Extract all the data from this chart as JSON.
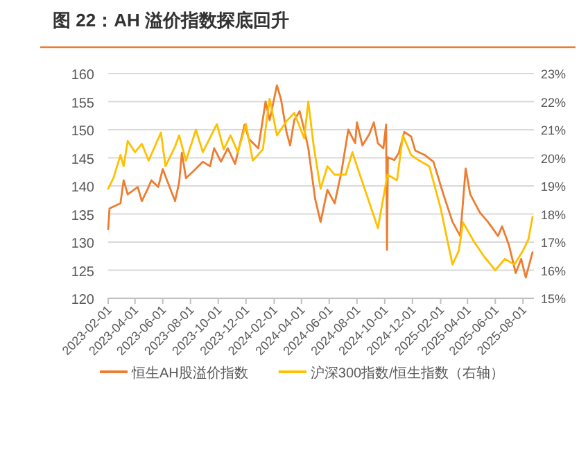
{
  "chart_data": {
    "type": "line",
    "title": "图 22：AH 溢价指数探底回升",
    "xlim": [
      "2023-02-01",
      "2025-08-25"
    ],
    "xticks": [
      "2023-02-01",
      "2023-04-01",
      "2023-06-01",
      "2023-08-01",
      "2023-10-01",
      "2023-12-01",
      "2024-02-01",
      "2024-04-01",
      "2024-06-01",
      "2024-08-01",
      "2024-10-01",
      "2024-12-01",
      "2025-02-01",
      "2025-04-01",
      "2025-06-01",
      "2025-08-01"
    ],
    "ylim": [
      120,
      160
    ],
    "yticks": [
      120,
      125,
      130,
      135,
      140,
      145,
      150,
      155,
      160
    ],
    "y2lim": [
      15,
      23
    ],
    "y2ticks": [
      {
        "value": 15,
        "label": "15%"
      },
      {
        "value": 16,
        "label": "16%"
      },
      {
        "value": 17,
        "label": "17%"
      },
      {
        "value": 18,
        "label": "18%"
      },
      {
        "value": 19,
        "label": "19%"
      },
      {
        "value": 20,
        "label": "20%"
      },
      {
        "value": 21,
        "label": "21%"
      },
      {
        "value": 22,
        "label": "22%"
      },
      {
        "value": 23,
        "label": "23%"
      }
    ],
    "grid": "y",
    "legend": "bottom",
    "series": [
      {
        "name": "恒生AH股溢价指数",
        "color": "#ed7d31",
        "axis": "y",
        "x": [
          "2023-02-01",
          "2023-02-04",
          "2023-02-28",
          "2023-03-07",
          "2023-03-16",
          "2023-04-07",
          "2023-04-16",
          "2023-04-28",
          "2023-05-07",
          "2023-05-22",
          "2023-06-01",
          "2023-06-16",
          "2023-06-28",
          "2023-07-07",
          "2023-07-13",
          "2023-07-22",
          "2023-08-07",
          "2023-08-28",
          "2023-09-13",
          "2023-09-22",
          "2023-10-07",
          "2023-10-22",
          "2023-11-07",
          "2023-11-28",
          "2023-12-07",
          "2023-12-28",
          "2024-01-13",
          "2024-01-22",
          "2024-02-07",
          "2024-02-16",
          "2024-02-28",
          "2024-03-07",
          "2024-03-16",
          "2024-03-28",
          "2024-04-07",
          "2024-04-16",
          "2024-05-01",
          "2024-05-13",
          "2024-05-28",
          "2024-06-13",
          "2024-06-28",
          "2024-07-13",
          "2024-07-28",
          "2024-08-01",
          "2024-08-13",
          "2024-08-28",
          "2024-09-07",
          "2024-09-16",
          "2024-09-28",
          "2024-10-04",
          "2024-10-06",
          "2024-10-08",
          "2024-10-22",
          "2024-11-01",
          "2024-11-13",
          "2024-11-28",
          "2024-12-07",
          "2024-12-28",
          "2025-01-16",
          "2025-02-07",
          "2025-02-27",
          "2025-03-16",
          "2025-03-28",
          "2025-04-07",
          "2025-04-28",
          "2025-05-16",
          "2025-06-07",
          "2025-06-16",
          "2025-07-01",
          "2025-07-16",
          "2025-07-28",
          "2025-08-07",
          "2025-08-22"
        ],
        "values": [
          132.3,
          136.0,
          136.9,
          141.0,
          138.5,
          139.8,
          137.3,
          139.3,
          141.0,
          139.8,
          143.0,
          139.8,
          137.3,
          140.6,
          145.9,
          141.4,
          142.6,
          144.3,
          143.5,
          146.7,
          144.3,
          146.7,
          143.9,
          150.9,
          148.4,
          146.7,
          155.0,
          151.7,
          157.9,
          155.4,
          149.6,
          147.2,
          151.7,
          153.3,
          150.0,
          146.7,
          137.7,
          133.6,
          139.3,
          136.9,
          142.6,
          150.0,
          147.6,
          151.3,
          147.2,
          149.2,
          151.3,
          147.6,
          146.7,
          150.9,
          128.6,
          145.1,
          144.6,
          145.9,
          149.6,
          148.8,
          146.3,
          145.5,
          144.3,
          138.5,
          133.6,
          131.1,
          143.1,
          138.5,
          135.3,
          133.6,
          131.1,
          132.8,
          129.5,
          124.5,
          127.0,
          123.7,
          128.2
        ]
      },
      {
        "name": "沪深300指数/恒生指数（右轴）",
        "color": "#ffc000",
        "axis": "y2",
        "x": [
          "2023-02-01",
          "2023-02-13",
          "2023-02-28",
          "2023-03-07",
          "2023-03-16",
          "2023-04-01",
          "2023-04-16",
          "2023-05-01",
          "2023-05-28",
          "2023-06-07",
          "2023-06-28",
          "2023-07-07",
          "2023-07-22",
          "2023-08-13",
          "2023-08-28",
          "2023-09-28",
          "2023-10-13",
          "2023-10-28",
          "2023-11-13",
          "2023-12-01",
          "2023-12-16",
          "2024-01-07",
          "2024-01-22",
          "2024-02-07",
          "2024-02-28",
          "2024-03-16",
          "2024-04-07",
          "2024-04-16",
          "2024-04-28",
          "2024-05-13",
          "2024-05-28",
          "2024-06-13",
          "2024-07-07",
          "2024-07-22",
          "2024-08-01",
          "2024-08-22",
          "2024-09-16",
          "2024-10-07",
          "2024-10-28",
          "2024-11-10",
          "2024-11-28",
          "2024-12-16",
          "2025-01-07",
          "2025-02-01",
          "2025-02-27",
          "2025-03-13",
          "2025-03-22",
          "2025-04-16",
          "2025-05-07",
          "2025-06-01",
          "2025-06-22",
          "2025-07-13",
          "2025-08-01",
          "2025-08-13",
          "2025-08-22"
        ],
        "values": [
          18.9,
          19.3,
          20.1,
          19.7,
          20.6,
          20.2,
          20.5,
          19.9,
          20.9,
          19.7,
          20.4,
          20.8,
          19.9,
          21.0,
          20.2,
          21.2,
          20.3,
          20.8,
          20.2,
          21.2,
          19.9,
          20.3,
          22.1,
          20.8,
          21.3,
          21.6,
          20.7,
          22.0,
          20.4,
          18.9,
          19.7,
          19.4,
          19.4,
          20.2,
          19.7,
          18.7,
          17.5,
          19.4,
          19.2,
          20.8,
          20.1,
          19.9,
          19.7,
          18.2,
          16.2,
          16.7,
          17.7,
          17.0,
          16.5,
          16.0,
          16.4,
          16.2,
          16.7,
          17.1,
          17.9
        ]
      }
    ]
  }
}
